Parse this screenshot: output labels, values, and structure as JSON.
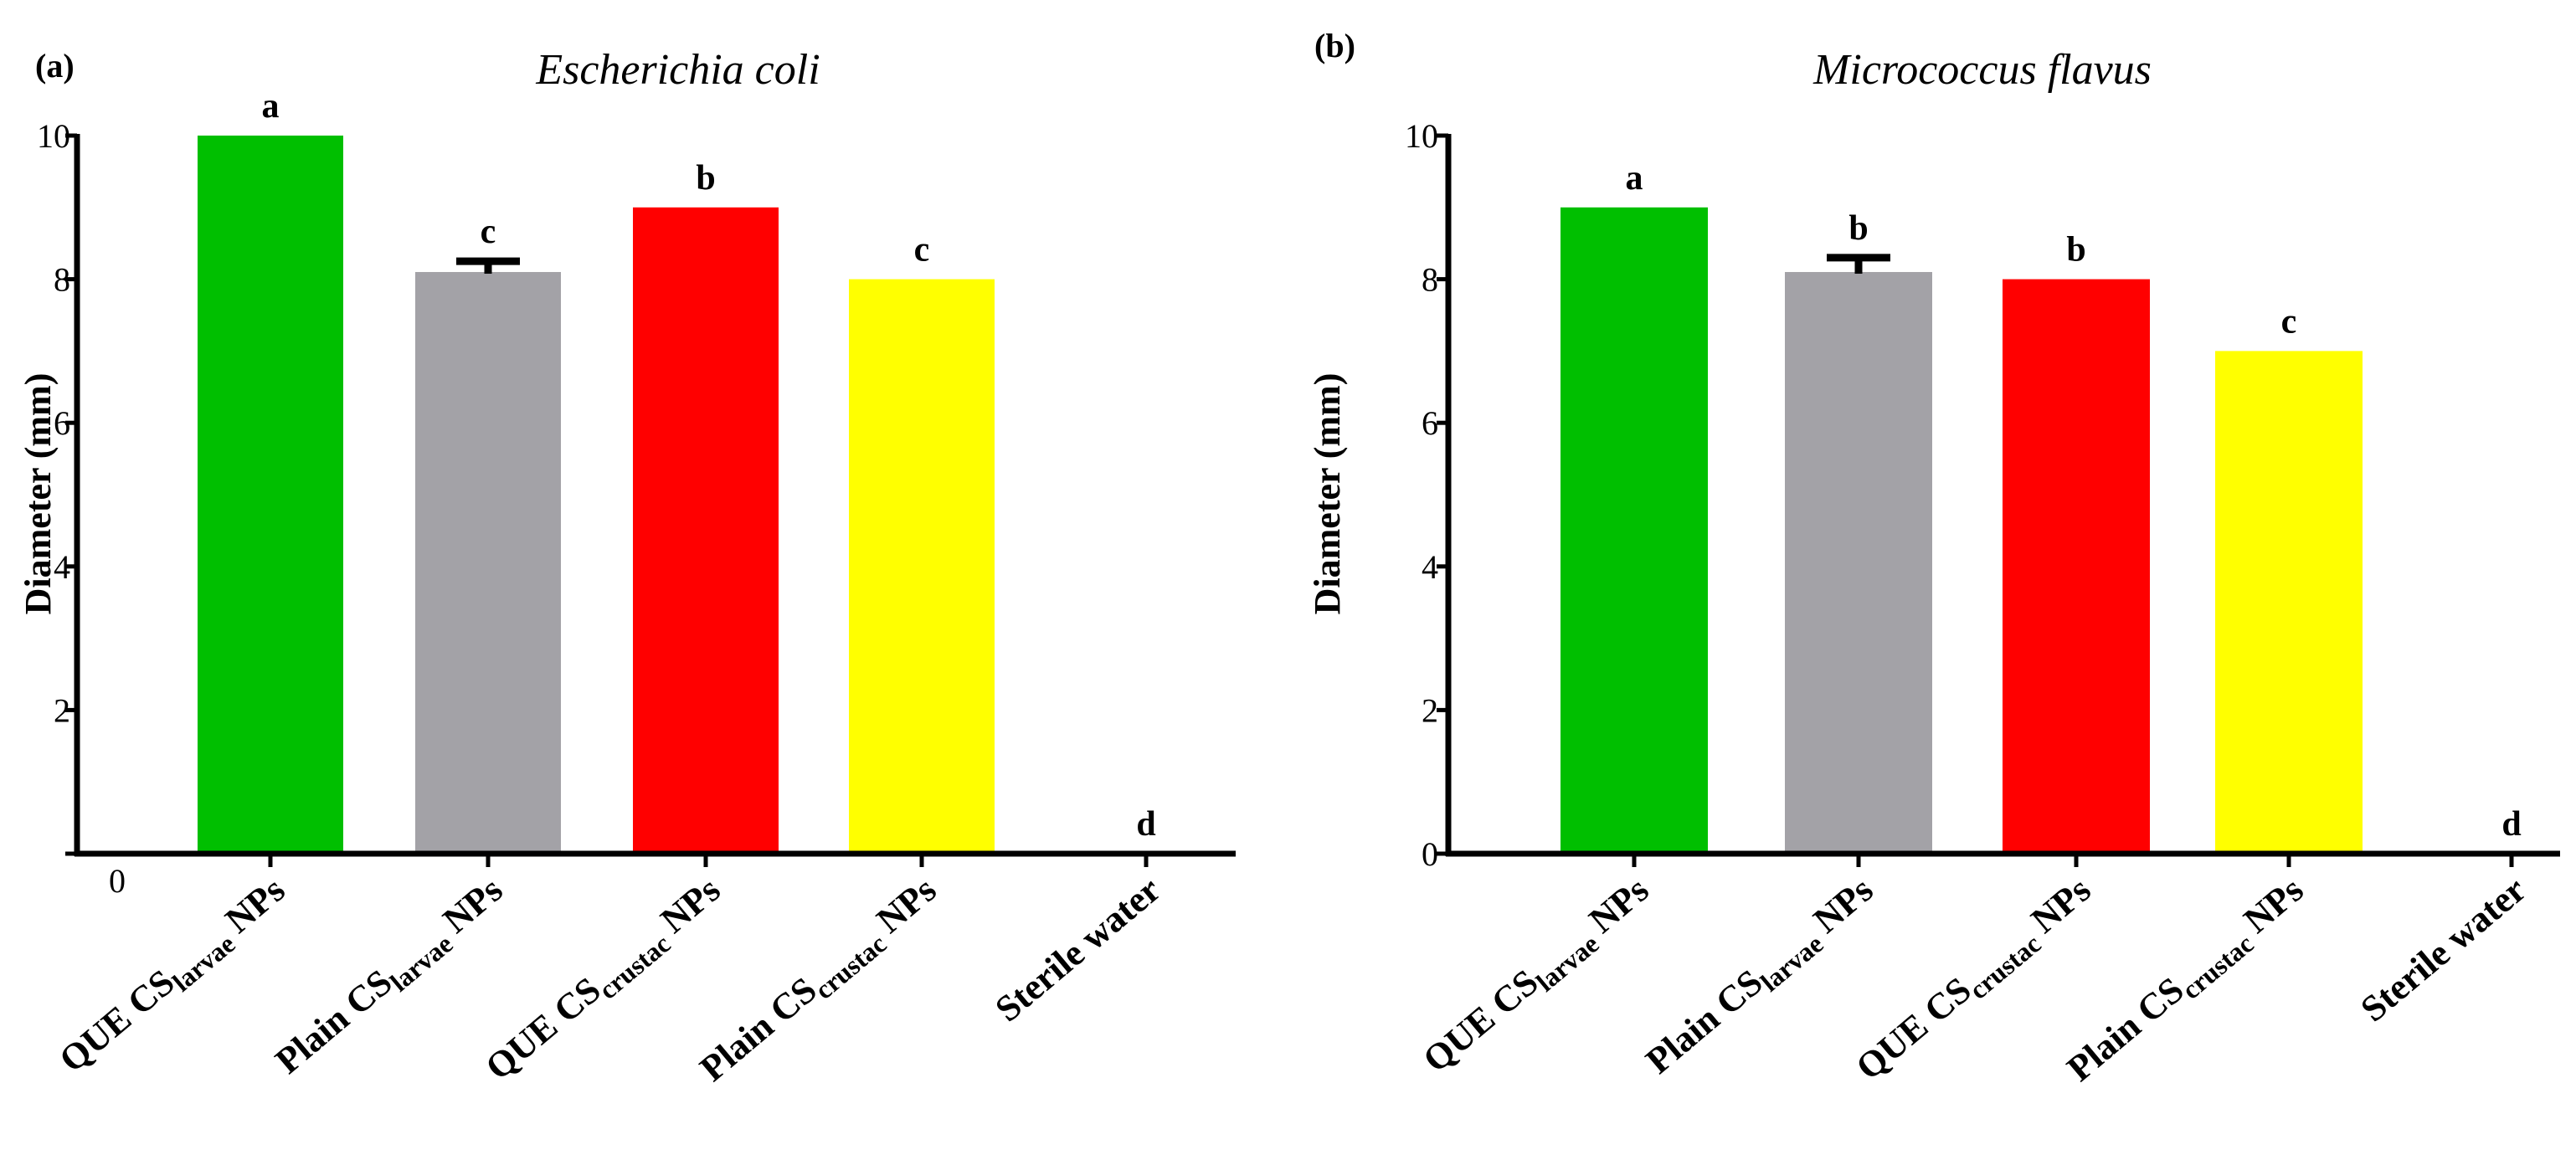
{
  "chart_data": [
    {
      "type": "bar",
      "panel": "(a)",
      "title": "Escherichia coli",
      "ylabel": "Diameter (mm)",
      "xlabel": "",
      "ylim": [
        0,
        10
      ],
      "yticks": [
        0,
        2,
        4,
        6,
        8,
        10
      ],
      "categories": [
        {
          "pre": "QUE CS",
          "sub": "larvae",
          "post": " NPs"
        },
        {
          "pre": "Plain CS",
          "sub": "larvae",
          "post": " NPs"
        },
        {
          "pre": "QUE CS",
          "sub": "crustac",
          "post": " NPs"
        },
        {
          "pre": "Plain CS",
          "sub": "crustac",
          "post": " NPs"
        },
        {
          "pre": "Sterile water",
          "sub": "",
          "post": ""
        }
      ],
      "values": [
        10,
        8.1,
        9,
        8,
        0
      ],
      "errors": [
        0,
        0.15,
        0,
        0,
        0
      ],
      "significance": [
        "a",
        "c",
        "b",
        "c",
        "d"
      ],
      "colors": [
        "#00bf00",
        "#a3a2a7",
        "#ff0000",
        "#ffff00",
        "#ffffff"
      ]
    },
    {
      "type": "bar",
      "panel": "(b)",
      "title": "Micrococcus flavus",
      "ylabel": "Diameter (mm)",
      "xlabel": "",
      "ylim": [
        0,
        10
      ],
      "yticks": [
        0,
        2,
        4,
        6,
        8,
        10
      ],
      "categories": [
        {
          "pre": "QUE CS",
          "sub": "larvae",
          "post": " NPs"
        },
        {
          "pre": "Plain CS",
          "sub": "larvae",
          "post": " NPs"
        },
        {
          "pre": "QUE CS",
          "sub": "crustac",
          "post": " NPs"
        },
        {
          "pre": "Plain CS",
          "sub": "crustac",
          "post": " NPs"
        },
        {
          "pre": "Sterile water",
          "sub": "",
          "post": ""
        }
      ],
      "values": [
        9,
        8.1,
        8,
        7,
        0
      ],
      "errors": [
        0,
        0.2,
        0,
        0,
        0
      ],
      "significance": [
        "a",
        "b",
        "b",
        "c",
        "d"
      ],
      "colors": [
        "#00bf00",
        "#a3a2a7",
        "#ff0000",
        "#ffff00",
        "#ffffff"
      ]
    }
  ]
}
